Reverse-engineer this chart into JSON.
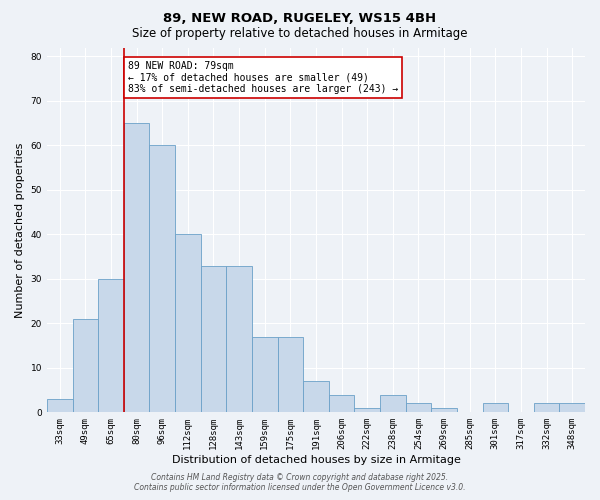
{
  "title1": "89, NEW ROAD, RUGELEY, WS15 4BH",
  "title2": "Size of property relative to detached houses in Armitage",
  "xlabel": "Distribution of detached houses by size in Armitage",
  "ylabel": "Number of detached properties",
  "categories": [
    "33sqm",
    "49sqm",
    "65sqm",
    "80sqm",
    "96sqm",
    "112sqm",
    "128sqm",
    "143sqm",
    "159sqm",
    "175sqm",
    "191sqm",
    "206sqm",
    "222sqm",
    "238sqm",
    "254sqm",
    "269sqm",
    "285sqm",
    "301sqm",
    "317sqm",
    "332sqm",
    "348sqm"
  ],
  "values": [
    3,
    21,
    30,
    65,
    60,
    40,
    33,
    33,
    17,
    17,
    7,
    4,
    1,
    4,
    2,
    1,
    0,
    2,
    0,
    2,
    2
  ],
  "bar_color": "#c8d8ea",
  "bar_edge_color": "#6aa0c8",
  "red_line_x": 3.0,
  "red_line_color": "#cc0000",
  "ylim": [
    0,
    82
  ],
  "yticks": [
    0,
    10,
    20,
    30,
    40,
    50,
    60,
    70,
    80
  ],
  "annotation_text": "89 NEW ROAD: 79sqm\n← 17% of detached houses are smaller (49)\n83% of semi-detached houses are larger (243) →",
  "annotation_box_color": "#ffffff",
  "annotation_box_edge_color": "#cc0000",
  "footer": "Contains HM Land Registry data © Crown copyright and database right 2025.\nContains public sector information licensed under the Open Government Licence v3.0.",
  "bg_color": "#eef2f7",
  "grid_color": "#ffffff",
  "title_fontsize": 9.5,
  "subtitle_fontsize": 8.5,
  "tick_fontsize": 6.5,
  "ylabel_fontsize": 8,
  "xlabel_fontsize": 8,
  "annotation_fontsize": 7,
  "footer_fontsize": 5.5
}
